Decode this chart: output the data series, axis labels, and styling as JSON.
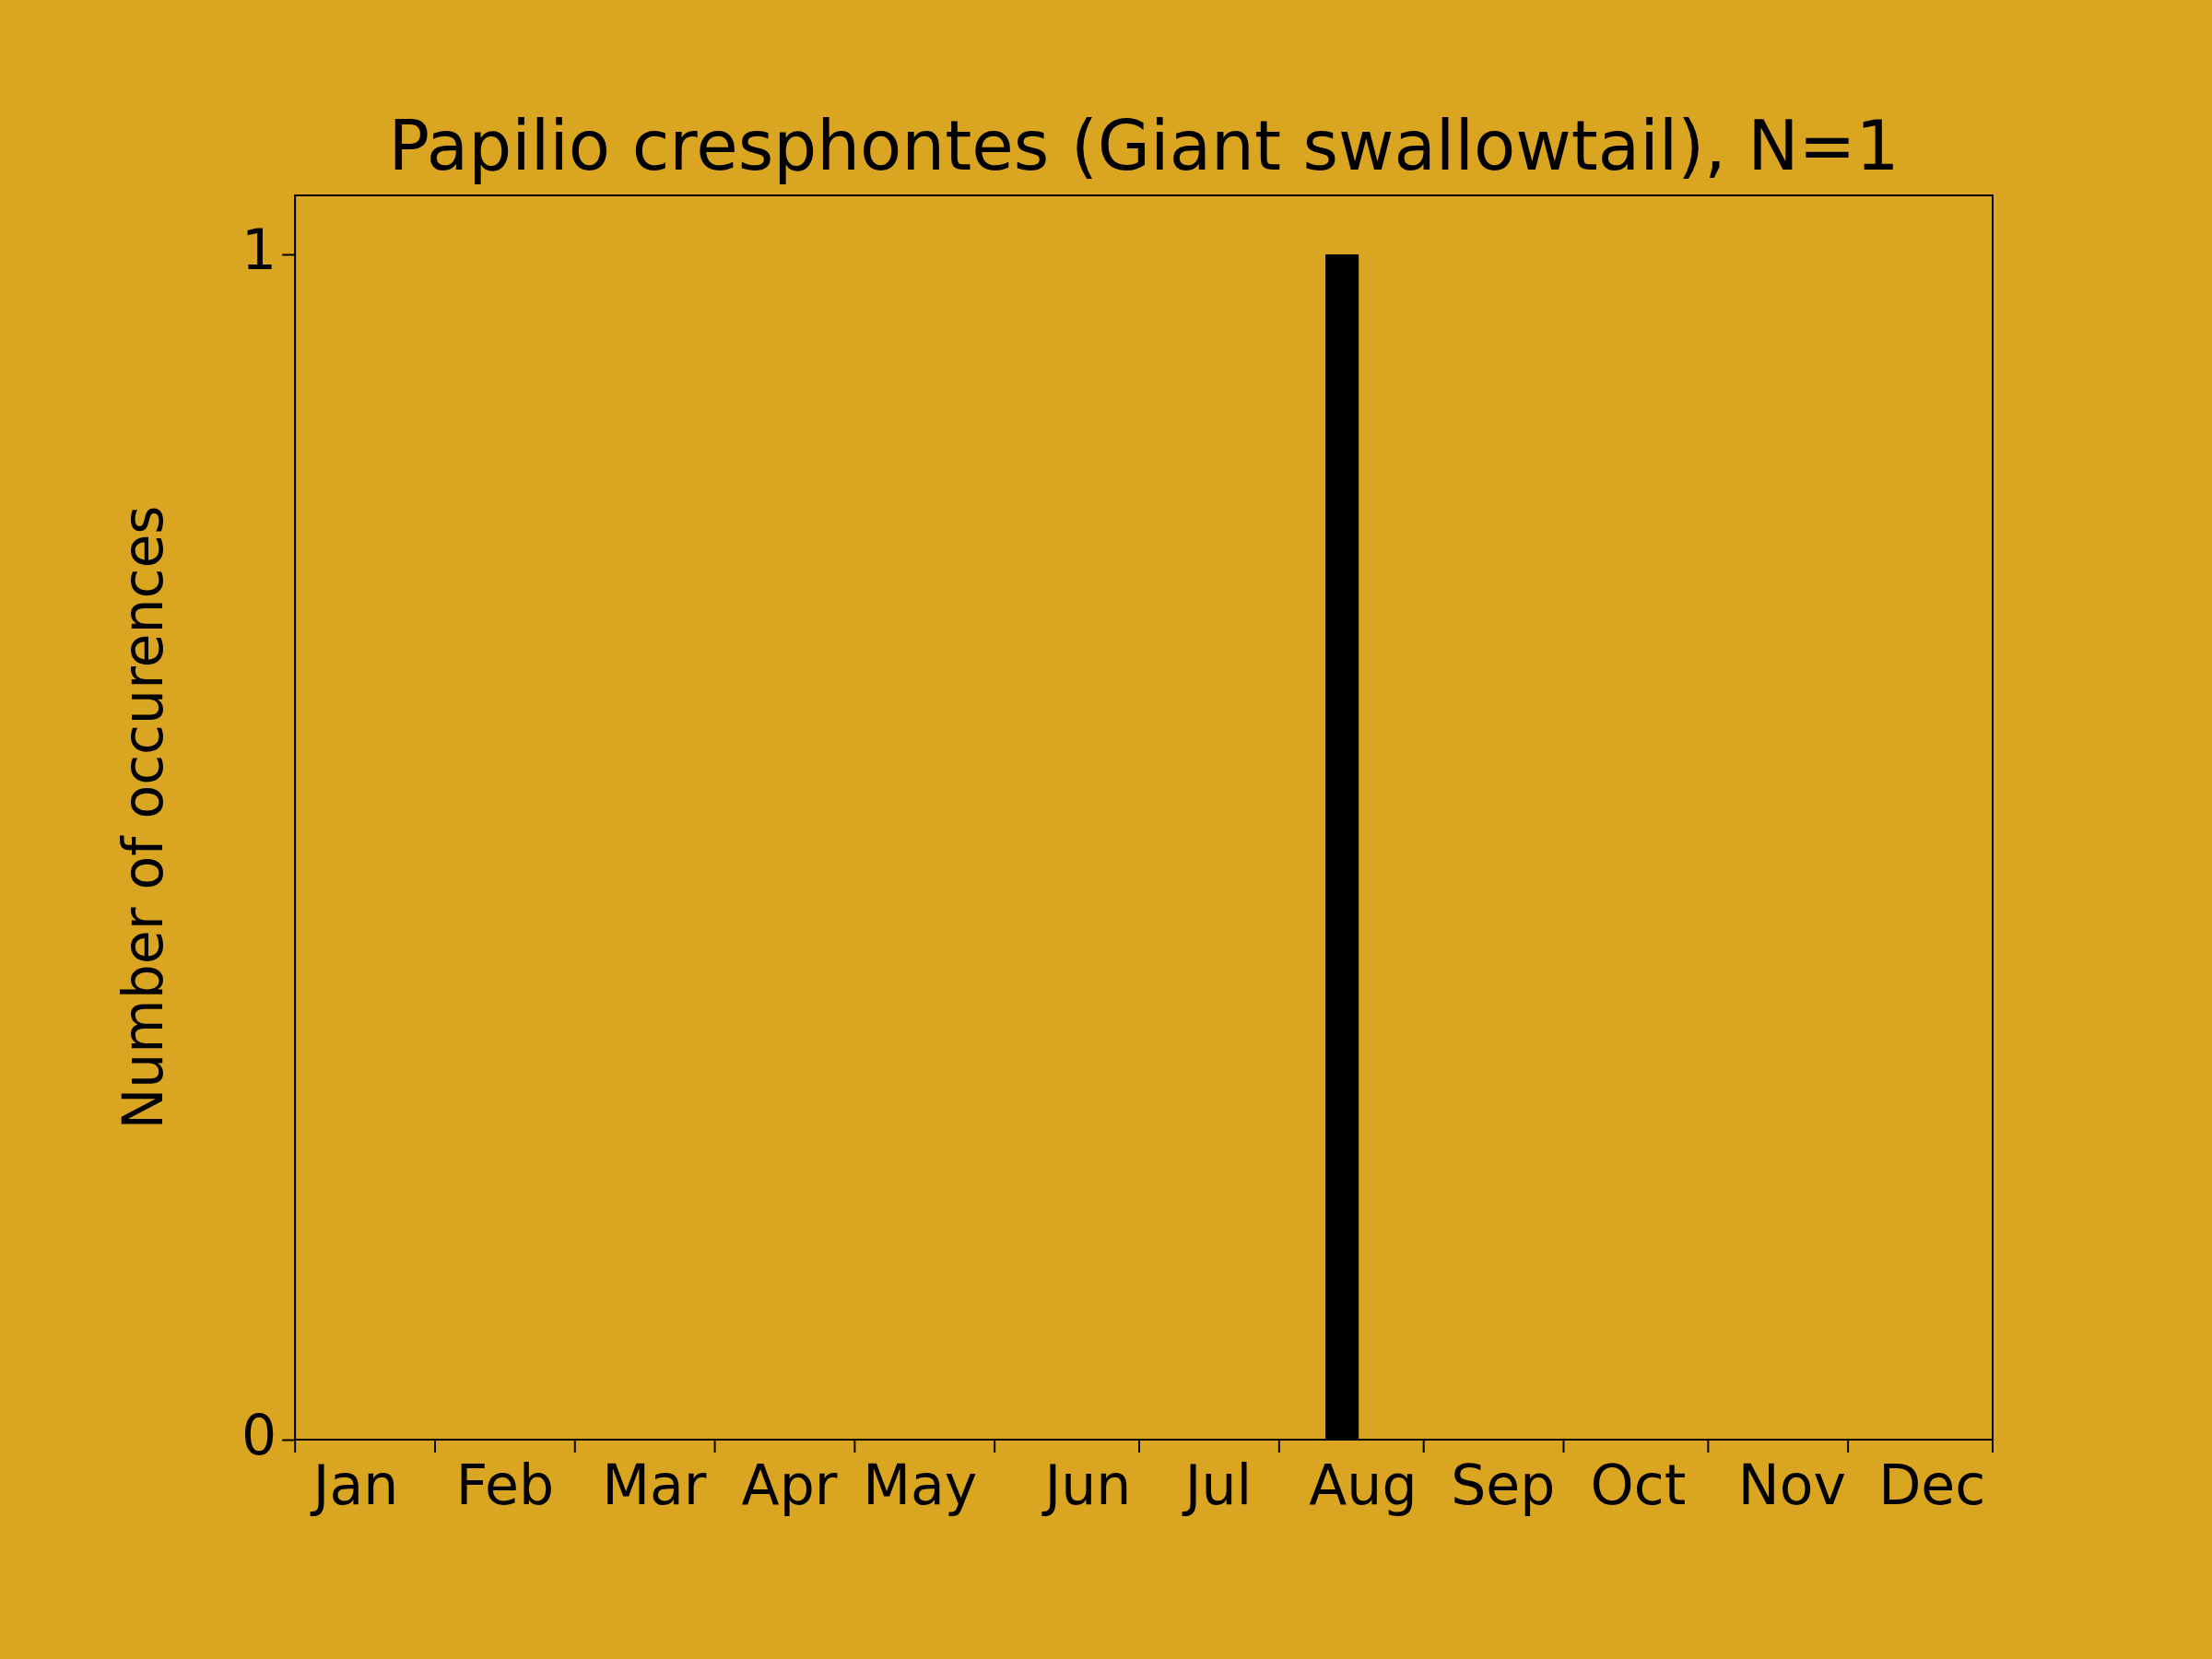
{
  "chart_data": {
    "type": "histogram",
    "title": "Papilio cresphontes (Giant swallowtail), N=1",
    "ylabel": "Number of occurences",
    "bins": [
      "--01-01",
      "--01-09",
      "--01-16",
      "--01-24",
      "--01-31",
      "--02-08",
      "--02-16",
      "--02-23",
      "--03-03",
      "--03-10",
      "--03-18",
      "--03-26",
      "--04-02",
      "--04-10",
      "--04-17",
      "--04-25",
      "--05-03",
      "--05-10",
      "--05-18",
      "--05-25",
      "--06-02",
      "--06-10",
      "--06-17",
      "--06-25",
      "--07-03",
      "--07-10",
      "--07-18",
      "--07-25",
      "--08-02",
      "--08-10",
      "--08-17",
      "--08-25",
      "--09-01",
      "--09-09",
      "--09-17",
      "--09-24",
      "--10-02",
      "--10-09",
      "--10-17",
      "--10-25",
      "--11-01",
      "--11-09",
      "--11-16",
      "--11-24",
      "--12-02",
      "--12-09",
      "--12-17",
      "--12-24",
      "--12-31"
    ],
    "values": [
      0,
      0,
      0,
      0,
      0,
      0,
      0,
      0,
      0,
      0,
      0,
      0,
      0,
      0,
      0,
      0,
      0,
      0,
      0,
      0,
      0,
      0,
      0,
      0,
      0,
      0,
      0,
      0,
      0,
      1,
      0,
      0,
      0,
      0,
      0,
      0,
      0,
      0,
      0,
      0,
      0,
      0,
      0,
      0,
      0,
      0,
      0,
      0
    ],
    "color": "#000000",
    "xlim": [
      "--01-01",
      "--12-31"
    ],
    "xticks": [
      {
        "value": "--01-01",
        "label": null
      },
      {
        "value": "--01-31",
        "label": null
      },
      {
        "value": "--03-02",
        "label": null
      },
      {
        "value": "--04-01",
        "label": null
      },
      {
        "value": "--05-01",
        "label": null
      },
      {
        "value": "--05-31",
        "label": null
      },
      {
        "value": "--07-01",
        "label": null
      },
      {
        "value": "--07-31",
        "label": null
      },
      {
        "value": "--08-31",
        "label": null
      },
      {
        "value": "--09-30",
        "label": null
      },
      {
        "value": "--10-31",
        "label": null
      },
      {
        "value": "--11-30",
        "label": null
      },
      {
        "value": "--12-31",
        "label": null
      },
      {
        "value": "--01-14",
        "label": "Jan"
      },
      {
        "value": "--02-15",
        "label": "Feb"
      },
      {
        "value": "--03-19",
        "label": "Mar"
      },
      {
        "value": "--04-17",
        "label": "Apr"
      },
      {
        "value": "--05-15",
        "label": "May"
      },
      {
        "value": "--06-20",
        "label": "Jun"
      },
      {
        "value": "--07-18",
        "label": "Jul"
      },
      {
        "value": "--08-18",
        "label": "Aug"
      },
      {
        "value": "--09-17",
        "label": "Sep"
      },
      {
        "value": "--10-16",
        "label": "Oct"
      },
      {
        "value": "--11-18",
        "label": "Nov"
      },
      {
        "value": "--12-18",
        "label": "Dec"
      }
    ],
    "ylim": [
      0,
      1.05
    ],
    "yticks": [
      0,
      1
    ],
    "grid": false,
    "legend": false
  }
}
